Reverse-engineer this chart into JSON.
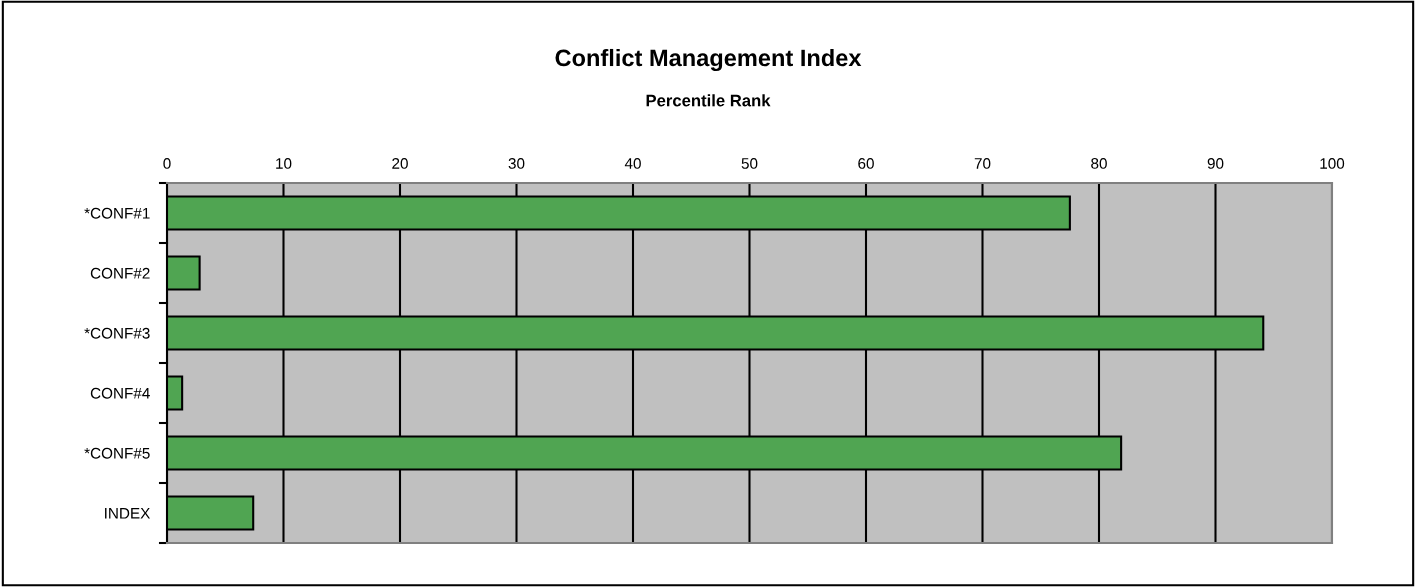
{
  "chart_data": {
    "type": "bar",
    "orientation": "horizontal",
    "title": "Conflict Management Index",
    "subtitle": "Percentile Rank",
    "categories": [
      "*CONF#1",
      "CONF#2",
      "*CONF#3",
      "CONF#4",
      "*CONF#5",
      "INDEX"
    ],
    "values": [
      77.5,
      2.8,
      94.1,
      1.3,
      81.9,
      7.4
    ],
    "color": "#50a552",
    "xlim": [
      0,
      100
    ],
    "xticks": [
      0,
      10,
      20,
      30,
      40,
      50,
      60,
      70,
      80,
      90,
      100
    ],
    "grid": "x"
  }
}
